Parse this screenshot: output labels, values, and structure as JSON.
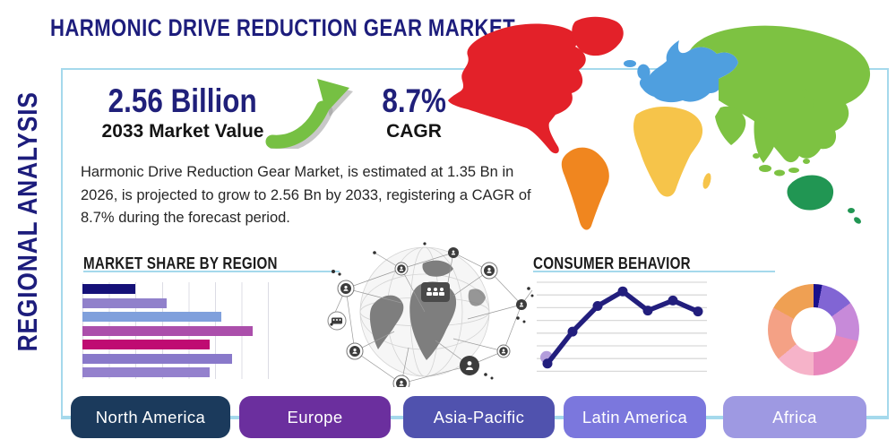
{
  "title": "HARMONIC DRIVE REDUCTION GEAR MARKET",
  "sidebar": {
    "label": "REGIONAL ANALYSIS"
  },
  "stats": {
    "market_value": "2.56 Billion",
    "market_value_caption": "2033 Market Value",
    "cagr_value": "8.7%",
    "cagr_caption": "CAGR",
    "growth_arrow_icon": "up-trend-arrow",
    "accent_navy": "#1d1d7c",
    "arrow_green": "#76c043",
    "box_border_blue": "#a5d9ec"
  },
  "description": "Harmonic Drive Reduction Gear Market, is estimated at 1.35 Bn in 2026, is projected to grow to 2.56 Bn by 2033, registering a CAGR of 8.7% during the forecast period.",
  "sections": {
    "market_share": {
      "heading": "MARKET SHARE BY REGION"
    },
    "consumer_behavior": {
      "heading": "CONSUMER BEHAVIOR"
    }
  },
  "map": {
    "name": "world-map",
    "regions": [
      {
        "name": "north-america",
        "color": "#e32129"
      },
      {
        "name": "greenland",
        "color": "#e32129"
      },
      {
        "name": "south-america",
        "color": "#f0861f"
      },
      {
        "name": "europe",
        "color": "#4f9fdf"
      },
      {
        "name": "iceland",
        "color": "#4f9fdf"
      },
      {
        "name": "uk",
        "color": "#4f9fdf"
      },
      {
        "name": "africa",
        "color": "#f6c44a"
      },
      {
        "name": "madagascar",
        "color": "#f6c44a"
      },
      {
        "name": "asia",
        "color": "#7dc242"
      },
      {
        "name": "arabia",
        "color": "#7dc242"
      },
      {
        "name": "india",
        "color": "#7dc242"
      },
      {
        "name": "japan",
        "color": "#7dc242"
      },
      {
        "name": "se-asia",
        "color": "#7dc242"
      },
      {
        "name": "australia",
        "color": "#219653"
      },
      {
        "name": "new-zealand",
        "color": "#219653"
      }
    ]
  },
  "footer": {
    "buttons": [
      {
        "label": "North America",
        "color": "#1b3a5c"
      },
      {
        "label": "Europe",
        "color": "#6b2f9e"
      },
      {
        "label": "Asia-Pacific",
        "color": "#5052ae"
      },
      {
        "label": "Latin America",
        "color": "#7b77dd"
      },
      {
        "label": "Africa",
        "color": "#9e99e2"
      }
    ]
  },
  "chart_data": [
    {
      "type": "bar",
      "orientation": "horizontal",
      "title": "MARKET SHARE BY REGION",
      "labels_visible": false,
      "values": [
        28,
        45,
        74,
        91,
        68,
        80,
        68
      ],
      "value_unit": "percent of axis width (no tick labels shown)",
      "colors": [
        "#151178",
        "#9181cb",
        "#80a0dc",
        "#ab4fab",
        "#bf0b72",
        "#8979ca",
        "#9481cd"
      ],
      "grid": "vertical"
    },
    {
      "type": "line",
      "title": "CONSUMER BEHAVIOR",
      "x": [
        1,
        2,
        3,
        4,
        5,
        6,
        7
      ],
      "values": [
        11,
        46,
        74,
        90,
        69,
        80,
        68
      ],
      "ylim": [
        0,
        100
      ],
      "labels_visible": false,
      "line_color": "#221e7d",
      "marker_color": "#221e7d",
      "first_point_highlight_color": "#b39ddb",
      "grid": "horizontal"
    },
    {
      "type": "pie",
      "title": "regional share donut",
      "inner_radius_pct": 48,
      "labels_visible": false,
      "segments": [
        {
          "value": 3,
          "color": "#1a118c"
        },
        {
          "value": 12,
          "color": "#8165d4"
        },
        {
          "value": 14,
          "color": "#c78ad9"
        },
        {
          "value": 21,
          "color": "#e887bb"
        },
        {
          "value": 14,
          "color": "#f6b3c9"
        },
        {
          "value": 19,
          "color": "#f4a185"
        },
        {
          "value": 17,
          "color": "#efa053"
        }
      ]
    }
  ]
}
